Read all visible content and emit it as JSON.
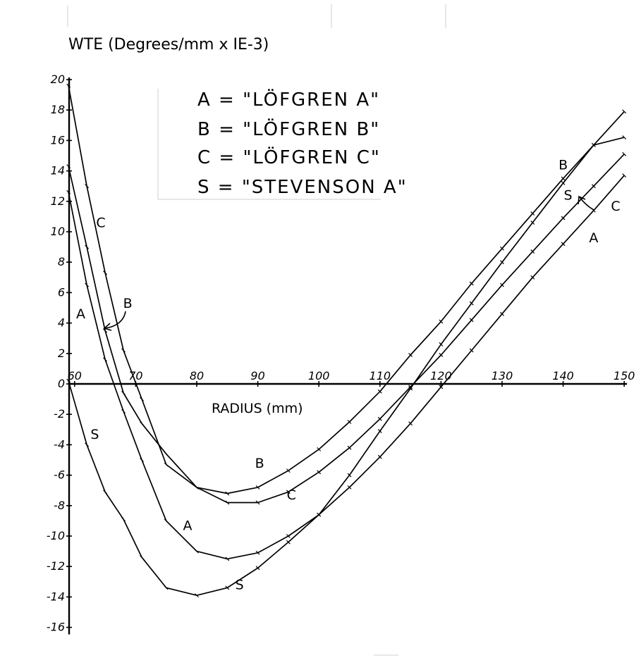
{
  "chart_data": {
    "type": "line",
    "title": "WTE (Degrees/mm x IE-3)",
    "xlabel": "RADIUS (mm)",
    "ylabel": "WTE (Degrees/mm x IE-3)",
    "xlim": [
      59,
      150
    ],
    "ylim": [
      -16,
      20
    ],
    "x_ticks": [
      60,
      70,
      80,
      90,
      100,
      110,
      120,
      130,
      140,
      150
    ],
    "x_tick_labels": [
      "60",
      "70",
      "80",
      "90",
      "100",
      "110",
      "120",
      "130",
      "140",
      "150"
    ],
    "y_ticks": [
      20,
      18,
      16,
      14,
      12,
      10,
      8,
      6,
      4,
      2,
      0,
      -2,
      -4,
      -6,
      -8,
      -10,
      -12,
      -14,
      -16
    ],
    "y_tick_labels": [
      "20",
      "18",
      "16",
      "14",
      "12",
      "10",
      "8",
      "6",
      "4",
      "2",
      "0",
      "-2",
      "-4",
      "-6",
      "-8",
      "-10",
      "-12",
      "-14",
      "-16"
    ],
    "legend": [
      {
        "key": "A",
        "text": "A = \"LÖFGREN A\""
      },
      {
        "key": "B",
        "text": "B = \"LÖFGREN B\""
      },
      {
        "key": "C",
        "text": "C = \"LÖFGREN C\""
      },
      {
        "key": "S",
        "text": "S = \"STEVENSON A\""
      }
    ],
    "legend_position": "top-center",
    "grid": false,
    "series": [
      {
        "name": "A",
        "x": [
          59,
          62,
          65,
          68,
          71,
          75,
          80,
          85,
          90,
          95,
          100,
          105,
          110,
          115,
          120,
          125,
          130,
          135,
          140,
          145,
          150
        ],
        "y": [
          12.6,
          6.5,
          1.6,
          -1.8,
          -5.0,
          -9.0,
          -11.0,
          -11.5,
          -11.1,
          -10.0,
          -8.6,
          -6.8,
          -4.8,
          -2.6,
          -0.2,
          2.2,
          4.6,
          7.0,
          9.2,
          11.4,
          13.7
        ]
      },
      {
        "name": "B",
        "x": [
          59,
          62,
          65,
          68,
          71,
          75,
          80,
          85,
          90,
          95,
          100,
          105,
          110,
          115,
          120,
          125,
          130,
          135,
          140,
          145,
          150
        ],
        "y": [
          14.3,
          9.0,
          3.5,
          -0.6,
          -2.6,
          -4.6,
          -6.8,
          -7.2,
          -6.8,
          -5.7,
          -4.3,
          -2.5,
          -0.5,
          1.9,
          4.1,
          6.6,
          8.9,
          11.2,
          13.5,
          15.7,
          17.9
        ]
      },
      {
        "name": "C",
        "x": [
          59,
          62,
          65,
          68,
          71,
          75,
          80,
          85,
          90,
          95,
          100,
          105,
          110,
          115,
          120,
          125,
          130,
          135,
          140,
          145,
          150
        ],
        "y": [
          19.6,
          13.0,
          7.3,
          2.2,
          -1.0,
          -5.3,
          -6.8,
          -7.8,
          -7.8,
          -7.1,
          -5.8,
          -4.2,
          -2.3,
          -0.2,
          1.9,
          4.2,
          6.5,
          8.7,
          10.9,
          13.0,
          15.1
        ]
      },
      {
        "name": "S",
        "x": [
          59,
          62,
          65,
          68,
          71,
          75,
          80,
          85,
          90,
          95,
          100,
          105,
          110,
          115,
          120,
          125,
          130,
          135,
          140,
          145,
          150
        ],
        "y": [
          0.2,
          -4.0,
          -7.1,
          -8.9,
          -11.4,
          -13.4,
          -13.9,
          -13.4,
          -12.1,
          -10.4,
          -8.6,
          -6.0,
          -3.1,
          -0.3,
          2.6,
          5.3,
          8.0,
          10.6,
          13.2,
          15.7,
          16.2
        ]
      }
    ],
    "curve_labels": [
      {
        "series": "C",
        "text": "C",
        "x": 64.3,
        "y": 10.3
      },
      {
        "series": "A",
        "text": "A",
        "x": 61.0,
        "y": 4.3
      },
      {
        "series": "B",
        "text": "B",
        "x": 68.7,
        "y": 5.0
      },
      {
        "series": "S",
        "text": "S",
        "x": 63.3,
        "y": -3.6
      },
      {
        "series": "B",
        "text": "B",
        "x": 90.3,
        "y": -5.5
      },
      {
        "series": "C",
        "text": "C",
        "x": 95.5,
        "y": -7.6
      },
      {
        "series": "A",
        "text": "A",
        "x": 78.5,
        "y": -9.6
      },
      {
        "series": "S",
        "text": "S",
        "x": 87.0,
        "y": -13.5
      },
      {
        "series": "B",
        "text": "B",
        "x": 140.0,
        "y": 14.1
      },
      {
        "series": "S",
        "text": "S",
        "x": 140.8,
        "y": 12.1
      },
      {
        "series": "C",
        "text": "C",
        "x": 148.6,
        "y": 11.4
      },
      {
        "series": "A",
        "text": "A",
        "x": 145.0,
        "y": 9.3
      }
    ]
  }
}
